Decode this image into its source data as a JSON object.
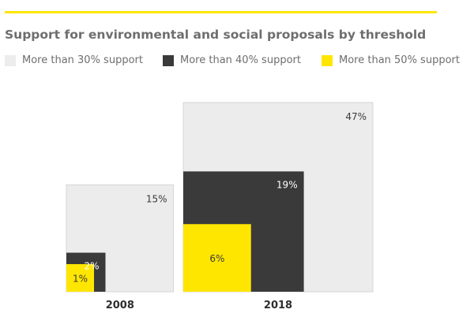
{
  "title": "Support for environmental and social proposals by threshold",
  "colors": {
    "accent": "#ffe600",
    "light": "#ececec",
    "dark": "#3a3a3a",
    "yellow": "#ffe600"
  },
  "chart_data": {
    "type": "nested-square",
    "title": "Support for environmental and social proposals by threshold",
    "legend_position": "top-left",
    "series": [
      {
        "name": "More than 30% support",
        "color": "#ececec"
      },
      {
        "name": "More than 40% support",
        "color": "#3a3a3a"
      },
      {
        "name": "More than 50% support",
        "color": "#ffe600"
      }
    ],
    "groups": [
      {
        "label": "2008",
        "values": [
          15,
          2,
          1
        ],
        "value_labels": [
          "15%",
          "2%",
          "1%"
        ]
      },
      {
        "label": "2018",
        "values": [
          47,
          19,
          6
        ],
        "value_labels": [
          "47%",
          "19%",
          "6%"
        ]
      }
    ]
  }
}
